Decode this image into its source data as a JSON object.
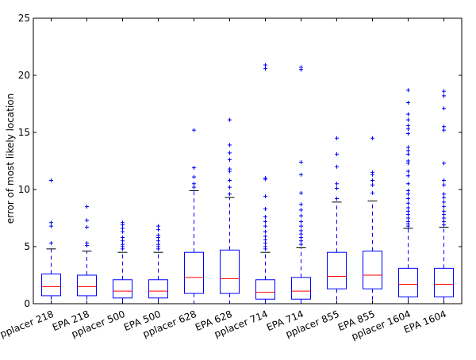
{
  "chart_data": {
    "type": "box",
    "title": "",
    "xlabel": "",
    "ylabel": "error of most likely location",
    "ylim": [
      0,
      25
    ],
    "yticks": [
      0,
      5,
      10,
      15,
      20,
      25
    ],
    "grid": false,
    "categories": [
      "pplacer 218",
      "EPA 218",
      "pplacer 500",
      "EPA 500",
      "pplacer 628",
      "EPA 628",
      "pplacer 714",
      "EPA 714",
      "pplacer 855",
      "EPA 855",
      "pplacer 1604",
      "EPA 1604"
    ],
    "boxes": [
      {
        "label": "pplacer 218",
        "whisker_low": 0,
        "q1": 0.7,
        "median": 1.5,
        "q3": 2.6,
        "whisker_high": 4.8,
        "fliers": [
          5.3,
          6.8,
          7.1,
          10.8
        ]
      },
      {
        "label": "EPA 218",
        "whisker_low": 0,
        "q1": 0.7,
        "median": 1.5,
        "q3": 2.5,
        "whisker_high": 4.6,
        "fliers": [
          5.1,
          5.3,
          6.7,
          7.3,
          8.5
        ]
      },
      {
        "label": "pplacer 500",
        "whisker_low": 0,
        "q1": 0.5,
        "median": 1.1,
        "q3": 2.1,
        "whisker_high": 4.5,
        "fliers": [
          4.8,
          5.0,
          5.2,
          5.5,
          5.8,
          6.3,
          6.6,
          6.9,
          7.1
        ]
      },
      {
        "label": "EPA 500",
        "whisker_low": 0,
        "q1": 0.5,
        "median": 1.1,
        "q3": 2.1,
        "whisker_high": 4.5,
        "fliers": [
          4.8,
          5.0,
          5.2,
          5.5,
          5.8,
          6.0,
          6.5,
          6.8
        ]
      },
      {
        "label": "pplacer 628",
        "whisker_low": 0,
        "q1": 0.9,
        "median": 2.3,
        "q3": 4.5,
        "whisker_high": 9.9,
        "fliers": [
          10.2,
          10.5,
          11.1,
          11.9,
          15.2
        ]
      },
      {
        "label": "EPA 628",
        "whisker_low": 0,
        "q1": 0.9,
        "median": 2.2,
        "q3": 4.7,
        "whisker_high": 9.3,
        "fliers": [
          9.6,
          10.2,
          10.8,
          11.6,
          11.8,
          12.6,
          13.2,
          13.9,
          16.1
        ]
      },
      {
        "label": "pplacer 714",
        "whisker_low": 0,
        "q1": 0.4,
        "median": 1.0,
        "q3": 2.1,
        "whisker_high": 4.5,
        "fliers": [
          4.8,
          5.0,
          5.3,
          5.6,
          5.9,
          6.3,
          6.8,
          7.2,
          7.6,
          8.3,
          9.4,
          10.9,
          11.0,
          20.6,
          20.9
        ]
      },
      {
        "label": "EPA 714",
        "whisker_low": 0,
        "q1": 0.4,
        "median": 1.1,
        "q3": 2.3,
        "whisker_high": 4.9,
        "fliers": [
          5.2,
          5.5,
          5.8,
          6.1,
          6.4,
          6.8,
          7.2,
          7.7,
          8.2,
          8.7,
          9.7,
          11.3,
          12.4,
          20.5,
          20.7
        ]
      },
      {
        "label": "pplacer 855",
        "whisker_low": 0,
        "q1": 1.3,
        "median": 2.4,
        "q3": 4.5,
        "whisker_high": 8.9,
        "fliers": [
          9.2,
          10.1,
          10.5,
          12.0,
          13.1,
          14.5
        ]
      },
      {
        "label": "EPA 855",
        "whisker_low": 0,
        "q1": 1.3,
        "median": 2.5,
        "q3": 4.6,
        "whisker_high": 9.0,
        "fliers": [
          9.7,
          10.4,
          10.8,
          11.3,
          11.5,
          14.5
        ]
      },
      {
        "label": "pplacer 1604",
        "whisker_low": 0,
        "q1": 0.6,
        "median": 1.7,
        "q3": 3.1,
        "whisker_high": 6.6,
        "fliers": [
          6.8,
          7.0,
          7.2,
          7.5,
          7.8,
          8.1,
          8.4,
          8.8,
          9.2,
          9.6,
          9.9,
          10.5,
          11.2,
          11.6,
          12.3,
          12.5,
          13.1,
          13.4,
          13.7,
          14.9,
          15.3,
          15.6,
          16.1,
          16.6,
          17.6,
          18.7
        ]
      },
      {
        "label": "EPA 1604",
        "whisker_low": 0,
        "q1": 0.6,
        "median": 1.7,
        "q3": 3.1,
        "whisker_high": 6.7,
        "fliers": [
          6.9,
          7.2,
          7.5,
          7.8,
          8.1,
          8.5,
          8.9,
          9.3,
          9.6,
          10.4,
          10.8,
          12.3,
          15.2,
          15.5,
          17.1,
          18.2,
          18.6
        ]
      }
    ],
    "colors": {
      "box": "#0000ff",
      "median": "#ff0000",
      "whisker_cap": "#000000",
      "flier": "#0000ff",
      "axes": "#000000"
    }
  }
}
